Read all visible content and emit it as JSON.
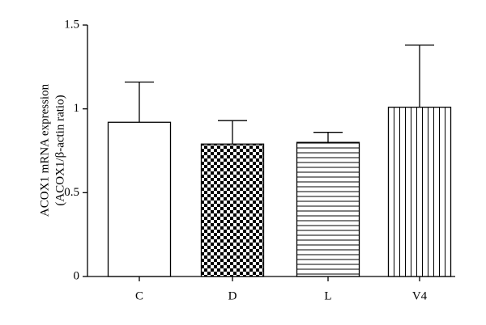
{
  "chart_data": {
    "type": "bar",
    "y_label": [
      "ACOX1 mRNA expression",
      "(ACOX1/β-actin ratio)"
    ],
    "categories": [
      "C",
      "D",
      "L",
      "V4"
    ],
    "values": [
      0.92,
      0.79,
      0.8,
      1.01
    ],
    "errors": [
      0.24,
      0.14,
      0.06,
      0.37
    ],
    "patterns": [
      "none",
      "checker",
      "hlines",
      "vlines"
    ],
    "color": "#000000",
    "ylim": [
      0,
      1.5
    ],
    "yticks": [
      0,
      0.5,
      1,
      1.5
    ]
  }
}
